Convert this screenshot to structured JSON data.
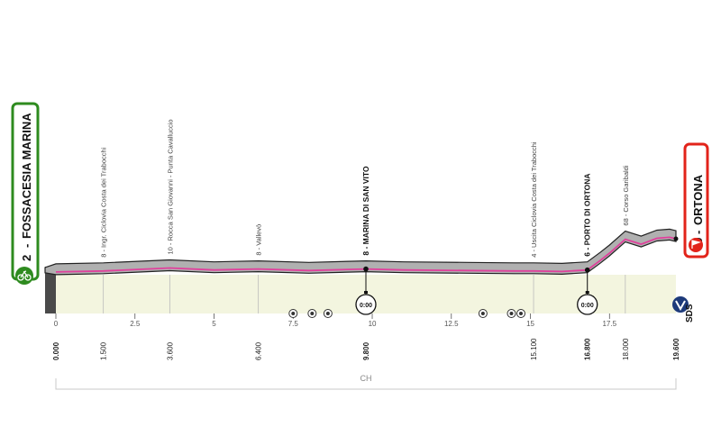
{
  "start": {
    "number": "2",
    "name": "FOSSACESIA MARINA",
    "color": "#2e8b1f"
  },
  "finish": {
    "number": "69",
    "name": "ORTONA",
    "color": "#e2231a"
  },
  "profile": {
    "length_km": 19.6,
    "elevation_m": [
      [
        0,
        2
      ],
      [
        1.5,
        4
      ],
      [
        3.6,
        10
      ],
      [
        5,
        6
      ],
      [
        6.4,
        8
      ],
      [
        8,
        5
      ],
      [
        9.8,
        8
      ],
      [
        11,
        6
      ],
      [
        13,
        5
      ],
      [
        14.5,
        4
      ],
      [
        15.1,
        4
      ],
      [
        16,
        3
      ],
      [
        16.8,
        6
      ],
      [
        17.2,
        25
      ],
      [
        17.5,
        40
      ],
      [
        18,
        68
      ],
      [
        18.5,
        58
      ],
      [
        19,
        70
      ],
      [
        19.4,
        72
      ],
      [
        19.6,
        69
      ]
    ],
    "colors": {
      "ground": "#f3f5df",
      "road": "#b0b0b0",
      "line": "#e0409c"
    }
  },
  "axis": {
    "ticks": [
      "0",
      "2.5",
      "5",
      "7.5",
      "10",
      "12.5",
      "15",
      "17.5"
    ],
    "end_label": "SDS",
    "region": "CH"
  },
  "waypoints": [
    {
      "km": "0.000",
      "label": "",
      "bold": true
    },
    {
      "km": "1.500",
      "label": "8 - Ingr. Ciclovia Costa dei Trabocchi",
      "bold": false
    },
    {
      "km": "3.600",
      "label": "10 - Rocca San Giovanni - Punta Cavalluccio",
      "bold": false
    },
    {
      "km": "6.400",
      "label": "8 - Vallevò",
      "bold": false
    },
    {
      "km": "9.800",
      "label": "8 - MARINA DI SAN VITO",
      "bold": true
    },
    {
      "km": "15.100",
      "label": "4 - Uscita Ciclovia Costa dei Trabocchi",
      "bold": false
    },
    {
      "km": "16.800",
      "label": "6 - PORTO DI ORTONA",
      "bold": true
    },
    {
      "km": "18.000",
      "label": "68 - Corso Garibaldi",
      "bold": false
    },
    {
      "km": "19.600",
      "label": "",
      "bold": true
    }
  ],
  "checkpoints": [
    {
      "km": 9.8,
      "label": "0:00"
    },
    {
      "km": 16.8,
      "label": "0:00"
    }
  ],
  "markers": [
    {
      "km": 7.5
    },
    {
      "km": 8.1
    },
    {
      "km": 8.6
    },
    {
      "km": 13.5
    },
    {
      "km": 14.4
    },
    {
      "km": 14.7
    }
  ],
  "icons": {
    "start_badge": "cyclist-icon",
    "finish_badge": "finish-flag-icon",
    "time_check": "stopwatch-icon",
    "end_logo": "sds-logo-icon"
  }
}
